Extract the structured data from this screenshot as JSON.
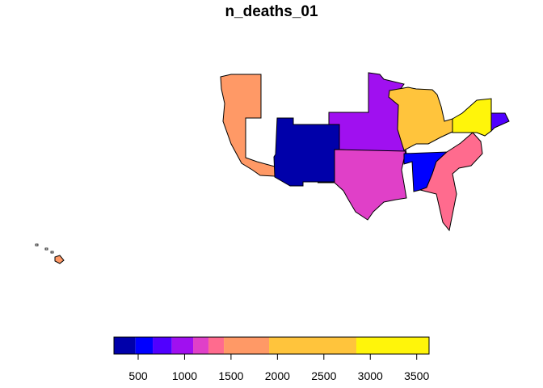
{
  "title": "n_deaths_01",
  "legend": {
    "breaks": [
      239,
      471,
      657,
      863,
      1092,
      1257,
      1423,
      1910,
      2850,
      3633
    ],
    "colors": [
      "#0000AA",
      "#0000FF",
      "#5000FF",
      "#A010F0",
      "#E040C8",
      "#FF6B8E",
      "#FF9966",
      "#FFC43C",
      "#FFF50A"
    ],
    "ticks": [
      500,
      1000,
      1500,
      2000,
      2500,
      3000,
      3500
    ],
    "tick_labels": [
      "500",
      "1000",
      "1500",
      "2000",
      "2500",
      "3000",
      "3500"
    ]
  },
  "regions": [
    {
      "fill": "#FF9966"
    },
    {
      "fill": "#0000AA"
    },
    {
      "fill": "#A010F0"
    },
    {
      "fill": "#E040C8"
    },
    {
      "fill": "#FFC43C"
    },
    {
      "fill": "#FFF50A"
    },
    {
      "fill": "#5000FF"
    },
    {
      "fill": "#0000FF"
    },
    {
      "fill": "#FF6B8E"
    }
  ]
}
